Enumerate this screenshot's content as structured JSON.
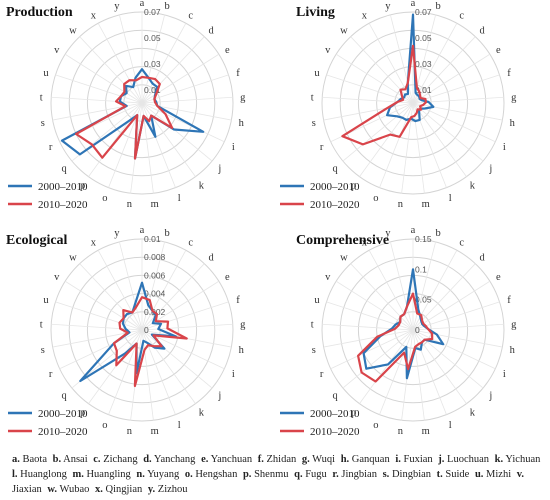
{
  "chart_data": [
    {
      "type": "radar",
      "title": "Production",
      "categories": [
        "a",
        "b",
        "c",
        "d",
        "e",
        "f",
        "g",
        "h",
        "i",
        "j",
        "k",
        "l",
        "m",
        "n",
        "o",
        "p",
        "q",
        "r",
        "s",
        "t",
        "u",
        "v",
        "w",
        "x",
        "y"
      ],
      "ticks": [
        "0.01",
        "0.03",
        "0.05",
        "0.07"
      ],
      "rmax": 0.07,
      "series": [
        {
          "name": "2000–2010",
          "values": [
            0.026,
            0.02,
            0.017,
            0.017,
            0.012,
            0.01,
            0.011,
            0.012,
            0.052,
            0.032,
            0.012,
            0.028,
            0.01,
            0.043,
            0.01,
            0.017,
            0.062,
            0.068,
            0.012,
            0.017,
            0.017,
            0.014,
            0.018,
            0.014,
            0.02
          ]
        },
        {
          "name": "2010–2020",
          "values": [
            0.02,
            0.02,
            0.021,
            0.02,
            0.013,
            0.01,
            0.01,
            0.012,
            0.02,
            0.03,
            0.012,
            0.015,
            0.01,
            0.043,
            0.01,
            0.052,
            0.05,
            0.056,
            0.013,
            0.02,
            0.017,
            0.016,
            0.02,
            0.02,
            0.018
          ]
        }
      ]
    },
    {
      "type": "radar",
      "title": "Living",
      "categories": [
        "a",
        "b",
        "c",
        "d",
        "e",
        "f",
        "g",
        "h",
        "i",
        "j",
        "k",
        "l",
        "m",
        "n",
        "o",
        "p",
        "q",
        "r",
        "s",
        "t",
        "u",
        "v",
        "w",
        "x",
        "y"
      ],
      "ticks": [
        "0.01",
        "0.03",
        "0.05",
        "0.07"
      ],
      "rmax": 0.07,
      "series": [
        {
          "name": "2000–2010",
          "values": [
            0.068,
            0.008,
            0.007,
            0.007,
            0.006,
            0.007,
            0.012,
            0.016,
            0.01,
            0.007,
            0.008,
            0.014,
            0.014,
            0.012,
            0.014,
            0.014,
            0.016,
            0.022,
            0.018,
            0.012,
            0.01,
            0.008,
            0.009,
            0.008,
            0.016
          ]
        },
        {
          "name": "2010–2020",
          "values": [
            0.044,
            0.012,
            0.01,
            0.008,
            0.007,
            0.01,
            0.01,
            0.008,
            0.006,
            0.008,
            0.006,
            0.008,
            0.01,
            0.011,
            0.028,
            0.03,
            0.05,
            0.06,
            0.02,
            0.012,
            0.008,
            0.01,
            0.014,
            0.012,
            0.016
          ]
        }
      ]
    },
    {
      "type": "radar",
      "title": "Ecological",
      "categories": [
        "a",
        "b",
        "c",
        "d",
        "e",
        "f",
        "g",
        "h",
        "i",
        "j",
        "k",
        "l",
        "m",
        "n",
        "o",
        "p",
        "q",
        "r",
        "s",
        "t",
        "u",
        "v",
        "w",
        "x",
        "y"
      ],
      "ticks": [
        "0",
        "0.002",
        "0.004",
        "0.006",
        "0.008",
        "0.01"
      ],
      "rmax": 0.01,
      "series": [
        {
          "name": "2000–2010",
          "values": [
            0.0052,
            0.0028,
            0.0024,
            0.0022,
            0.0014,
            0.0022,
            0.0018,
            0.0038,
            0.0012,
            0.0032,
            0.0024,
            0.0015,
            0.0012,
            0.0048,
            0.0016,
            0.0032,
            0.0088,
            0.0034,
            0.0014,
            0.0018,
            0.0022,
            0.0024,
            0.0024,
            0.0022,
            0.003
          ]
        },
        {
          "name": "2010–2020",
          "values": [
            0.0036,
            0.0034,
            0.0024,
            0.0024,
            0.0018,
            0.003,
            0.0028,
            0.005,
            0.0014,
            0.0028,
            0.0022,
            0.0018,
            0.0022,
            0.0062,
            0.0016,
            0.0048,
            0.0036,
            0.0034,
            0.0016,
            0.0024,
            0.0026,
            0.0024,
            0.003,
            0.0022,
            0.0026
          ]
        }
      ]
    },
    {
      "type": "radar",
      "title": "Comprehensive",
      "categories": [
        "a",
        "b",
        "c",
        "d",
        "e",
        "f",
        "g",
        "h",
        "i",
        "j",
        "k",
        "l",
        "m",
        "n",
        "o",
        "p",
        "q",
        "r",
        "s",
        "t",
        "u",
        "v",
        "w",
        "x",
        "y"
      ],
      "ticks": [
        "0",
        "0.05",
        "0.1",
        "0.15"
      ],
      "rmax": 0.15,
      "series": [
        {
          "name": "2000–2010",
          "values": [
            0.1,
            0.035,
            0.025,
            0.02,
            0.018,
            0.02,
            0.025,
            0.04,
            0.055,
            0.025,
            0.025,
            0.035,
            0.03,
            0.08,
            0.03,
            0.07,
            0.1,
            0.09,
            0.055,
            0.035,
            0.03,
            0.025,
            0.03,
            0.03,
            0.04
          ]
        },
        {
          "name": "2010–2020",
          "values": [
            0.06,
            0.028,
            0.028,
            0.022,
            0.02,
            0.022,
            0.025,
            0.032,
            0.035,
            0.025,
            0.025,
            0.025,
            0.028,
            0.065,
            0.04,
            0.105,
            0.11,
            0.1,
            0.06,
            0.03,
            0.025,
            0.025,
            0.03,
            0.03,
            0.04
          ]
        }
      ]
    }
  ],
  "colors": {
    "series1": "#2e75b6",
    "series2": "#d9444a",
    "grid": "#d4d4d4",
    "spoke": "#e6e6e6"
  },
  "legend": [
    "2000–2010",
    "2010–2020"
  ],
  "caption": [
    {
      "k": "a.",
      "v": "Baota"
    },
    {
      "k": "b.",
      "v": "Ansai"
    },
    {
      "k": "c.",
      "v": "Zichang"
    },
    {
      "k": "d.",
      "v": "Yanchang"
    },
    {
      "k": "e.",
      "v": "Yanchuan"
    },
    {
      "k": "f.",
      "v": "Zhidan"
    },
    {
      "k": "g.",
      "v": "Wuqi"
    },
    {
      "k": "h.",
      "v": "Ganquan"
    },
    {
      "k": "i.",
      "v": "Fuxian"
    },
    {
      "k": "j.",
      "v": "Luochuan"
    },
    {
      "k": "k.",
      "v": "Yichuan"
    },
    {
      "k": "l.",
      "v": "Huanglong"
    },
    {
      "k": "m.",
      "v": "Huangling"
    },
    {
      "k": "n.",
      "v": "Yuyang"
    },
    {
      "k": "o.",
      "v": "Hengshan"
    },
    {
      "k": "p.",
      "v": "Shenmu"
    },
    {
      "k": "q.",
      "v": "Fugu"
    },
    {
      "k": "r.",
      "v": "Jingbian"
    },
    {
      "k": "s.",
      "v": "Dingbian"
    },
    {
      "k": "t.",
      "v": "Suide"
    },
    {
      "k": "u.",
      "v": "Mizhi"
    },
    {
      "k": "v.",
      "v": "Jiaxian"
    },
    {
      "k": "w.",
      "v": "Wubao"
    },
    {
      "k": "x.",
      "v": "Qingjian"
    },
    {
      "k": "y.",
      "v": "Zizhou"
    }
  ]
}
